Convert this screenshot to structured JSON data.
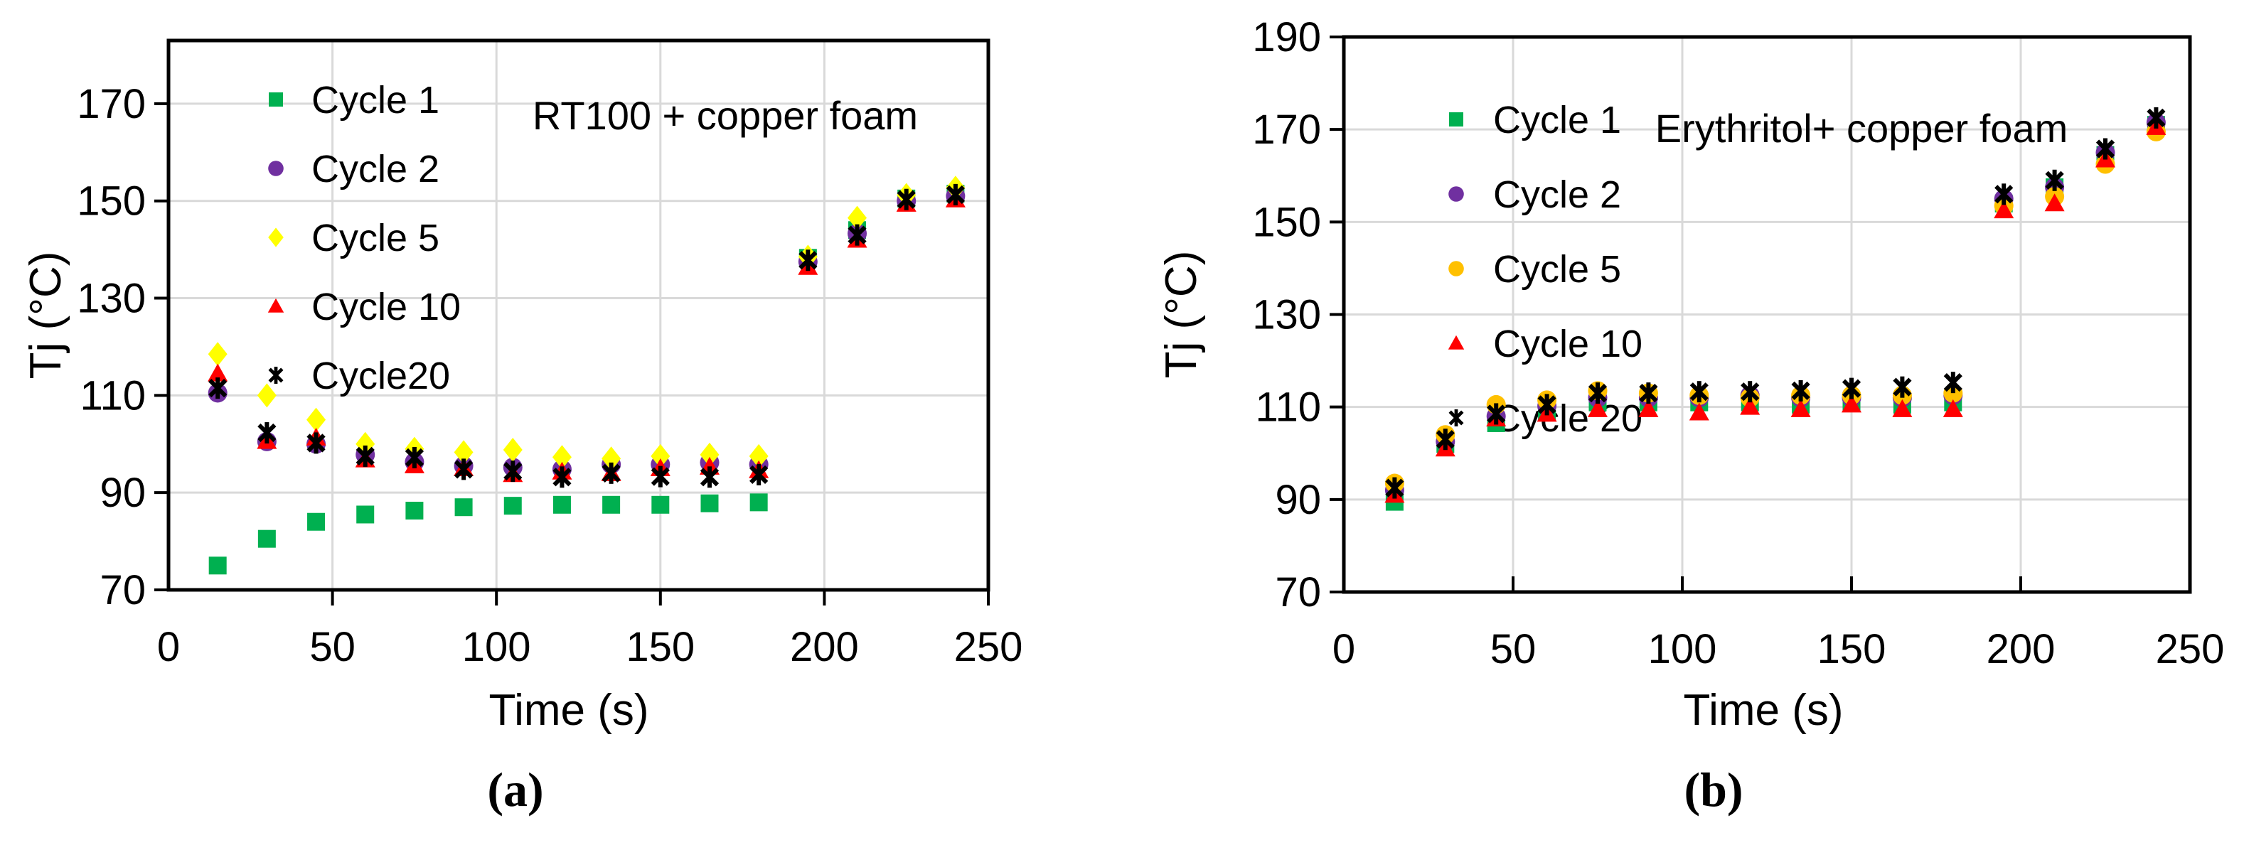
{
  "figure": {
    "captions": {
      "a": "(a)",
      "b": "(b)"
    }
  },
  "styles": {
    "grid_color": "#D9D9D9",
    "axis_color": "#000000",
    "text_color": "#000000",
    "background": "#FFFFFF"
  },
  "chart_data": [
    {
      "id": "a",
      "type": "scatter",
      "title": "RT100 + copper foam",
      "xlabel": "Time (s)",
      "ylabel": "Tj (°C)",
      "xlim": [
        0,
        250
      ],
      "ylim": [
        70,
        183
      ],
      "xticks": [
        0,
        50,
        100,
        150,
        200,
        250
      ],
      "yticks": [
        70,
        90,
        110,
        130,
        150,
        170
      ],
      "grid": true,
      "legend_position": "inside-top-left",
      "x": [
        15,
        30,
        45,
        60,
        75,
        90,
        105,
        120,
        135,
        150,
        165,
        180,
        195,
        210,
        225,
        240
      ],
      "series": [
        {
          "name": "Cycle 1",
          "marker": "square",
          "color": "#00B050",
          "values": [
            75,
            80.5,
            84,
            85.5,
            86.3,
            87,
            87.3,
            87.5,
            87.5,
            87.5,
            87.8,
            88,
            138.3,
            144,
            150.5,
            151.5
          ]
        },
        {
          "name": "Cycle 2",
          "marker": "circle",
          "color": "#7030A0",
          "values": [
            110.5,
            100.5,
            100,
            97.8,
            96.3,
            95.5,
            95.2,
            94.8,
            95.8,
            95.8,
            96.2,
            95.8,
            137.5,
            143.3,
            150,
            151
          ]
        },
        {
          "name": "Cycle 5",
          "marker": "diamond",
          "color": "#FFFF00",
          "values": [
            118.5,
            110,
            105,
            100,
            99,
            98.3,
            98.8,
            97.3,
            97,
            97.5,
            97.8,
            97.5,
            138.5,
            146.5,
            151.2,
            152.7
          ]
        },
        {
          "name": "Cycle 10",
          "marker": "triangle",
          "color": "#FF0000",
          "values": [
            114.5,
            100.6,
            101.3,
            96.8,
            95.6,
            95,
            93.8,
            94.3,
            94,
            95,
            95.3,
            94.6,
            136.4,
            142,
            149.4,
            150.3
          ]
        },
        {
          "name": "Cycle20",
          "marker": "asterisk",
          "color": "#000000",
          "values": [
            111.5,
            102.3,
            100.2,
            97.5,
            97.2,
            94.8,
            94.4,
            93.2,
            94,
            93.3,
            93.2,
            93.7,
            137.8,
            143,
            150.3,
            151.3
          ]
        }
      ]
    },
    {
      "id": "b",
      "type": "scatter",
      "title": "Erythritol+ copper foam",
      "xlabel": "Time (s)",
      "ylabel": "Tj (°C)",
      "xlim": [
        0,
        250
      ],
      "ylim": [
        70,
        190
      ],
      "xticks": [
        0,
        50,
        100,
        150,
        200,
        250
      ],
      "yticks": [
        70,
        90,
        110,
        130,
        150,
        170,
        190
      ],
      "grid": true,
      "legend_position": "inside-top-left",
      "x": [
        15,
        30,
        45,
        60,
        75,
        90,
        105,
        120,
        135,
        150,
        165,
        180,
        195,
        210,
        225,
        240
      ],
      "series": [
        {
          "name": "Cycle 1",
          "marker": "square",
          "color": "#00B050",
          "values": [
            89.5,
            102,
            106.5,
            109,
            111,
            111,
            111,
            111,
            110.5,
            111,
            110.5,
            111,
            154,
            157.5,
            164.5,
            171
          ]
        },
        {
          "name": "Cycle 2",
          "marker": "circle",
          "color": "#7030A0",
          "values": [
            92,
            102.5,
            108,
            110.2,
            112,
            112,
            112,
            112.5,
            112,
            112,
            112,
            112.5,
            155,
            157.5,
            165,
            171.5
          ]
        },
        {
          "name": "Cycle 5",
          "marker": "circle",
          "color": "#FFC000",
          "values": [
            93.5,
            104,
            110.5,
            111.5,
            113.5,
            113,
            112.5,
            112,
            112.5,
            112.5,
            112.5,
            113,
            153.5,
            155.5,
            162.5,
            169.5
          ]
        },
        {
          "name": "Cycle 10",
          "marker": "triangle",
          "color": "#FF0000",
          "values": [
            91,
            101,
            107.5,
            108.5,
            109.5,
            109.5,
            108.8,
            110,
            109.5,
            110.5,
            109.5,
            109.5,
            152.5,
            154,
            163.5,
            170.5
          ]
        },
        {
          "name": "Cycle 20",
          "marker": "asterisk",
          "color": "#000000",
          "values": [
            92.5,
            103,
            108.5,
            110.5,
            113,
            113,
            113.3,
            113.3,
            113.5,
            114,
            114.3,
            115.3,
            156,
            159,
            165.8,
            172.5
          ]
        }
      ]
    }
  ]
}
